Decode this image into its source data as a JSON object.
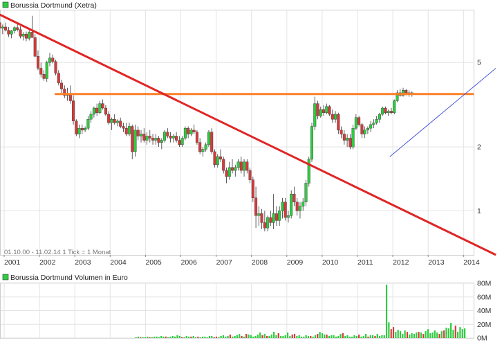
{
  "colors": {
    "up": "#2ecc40",
    "down": "#d63a3a",
    "candle_border": "#333333",
    "grid": "#e3e3e3",
    "frame": "#cccccc",
    "support_line": "#ff7f27",
    "downtrend_line": "#e02525",
    "uptrend_line": "#4a5ad8",
    "volume_bar": "#2ecc40",
    "volume_bar_alt": "#d63a3a",
    "legend_square": "#2ecc40"
  },
  "chart_data": [
    {
      "type": "candlestick",
      "title": "Borussia Dortmund (Xetra)",
      "note": "01.10.00 - 11.02.14   1 Tick = 1 Monat",
      "scale": "log",
      "ylim": [
        0.62,
        8.8
      ],
      "x_ticks": [
        "2001",
        "2002",
        "2003",
        "2004",
        "2005",
        "2006",
        "2007",
        "2008",
        "2009",
        "2010",
        "2011",
        "2012",
        "2013",
        "2014"
      ],
      "y_ticks": [
        {
          "label": "5",
          "value": 5
        },
        {
          "label": "2",
          "value": 2
        },
        {
          "label": "1",
          "value": 1
        }
      ],
      "ohlc_monthly": [
        [
          8.0,
          8.45,
          7.55,
          7.7
        ],
        [
          7.7,
          7.9,
          7.05,
          7.25
        ],
        [
          7.25,
          7.55,
          6.8,
          7.35
        ],
        [
          7.35,
          7.7,
          7.0,
          7.1
        ],
        [
          7.1,
          7.35,
          6.6,
          6.8
        ],
        [
          6.8,
          7.1,
          6.5,
          7.05
        ],
        [
          7.05,
          7.4,
          6.85,
          7.3
        ],
        [
          7.3,
          7.6,
          7.0,
          7.15
        ],
        [
          7.15,
          7.4,
          6.5,
          6.65
        ],
        [
          6.65,
          6.95,
          6.35,
          6.8
        ],
        [
          6.8,
          7.0,
          6.3,
          6.5
        ],
        [
          6.5,
          7.1,
          6.35,
          6.95
        ],
        [
          6.95,
          8.3,
          6.75,
          6.55
        ],
        [
          6.55,
          6.8,
          5.3,
          5.35
        ],
        [
          5.35,
          5.7,
          4.6,
          4.7
        ],
        [
          4.7,
          5.0,
          4.25,
          4.4
        ],
        [
          4.4,
          4.6,
          4.1,
          4.2
        ],
        [
          4.2,
          5.1,
          4.05,
          5.0
        ],
        [
          5.0,
          5.55,
          4.8,
          5.25
        ],
        [
          5.25,
          5.45,
          4.95,
          5.05
        ],
        [
          5.05,
          5.15,
          4.35,
          4.45
        ],
        [
          4.45,
          4.6,
          3.9,
          4.0
        ],
        [
          4.0,
          4.15,
          3.6,
          3.75
        ],
        [
          3.75,
          3.9,
          3.4,
          3.5
        ],
        [
          3.5,
          3.8,
          3.3,
          3.55
        ],
        [
          3.55,
          3.9,
          3.2,
          3.3
        ],
        [
          3.3,
          3.5,
          2.55,
          2.65
        ],
        [
          2.65,
          2.7,
          2.25,
          2.3
        ],
        [
          2.3,
          2.55,
          2.2,
          2.45
        ],
        [
          2.45,
          2.55,
          2.3,
          2.4
        ],
        [
          2.4,
          2.5,
          2.35,
          2.45
        ],
        [
          2.45,
          2.8,
          2.4,
          2.7
        ],
        [
          2.7,
          2.95,
          2.6,
          2.85
        ],
        [
          2.85,
          3.1,
          2.75,
          3.05
        ],
        [
          3.05,
          3.2,
          2.8,
          2.9
        ],
        [
          2.9,
          3.3,
          2.85,
          3.2
        ],
        [
          3.2,
          3.35,
          3.0,
          3.05
        ],
        [
          3.05,
          3.15,
          2.8,
          2.85
        ],
        [
          2.85,
          2.95,
          2.55,
          2.6
        ],
        [
          2.6,
          2.75,
          2.4,
          2.7
        ],
        [
          2.7,
          2.85,
          2.55,
          2.6
        ],
        [
          2.6,
          2.7,
          2.5,
          2.65
        ],
        [
          2.65,
          2.75,
          2.45,
          2.5
        ],
        [
          2.5,
          2.6,
          2.35,
          2.45
        ],
        [
          2.45,
          2.6,
          2.25,
          2.3
        ],
        [
          2.3,
          2.6,
          2.25,
          2.5
        ],
        [
          2.5,
          2.55,
          1.75,
          1.9
        ],
        [
          1.9,
          2.55,
          1.8,
          2.4
        ],
        [
          2.4,
          2.5,
          2.15,
          2.25
        ],
        [
          2.25,
          2.4,
          2.1,
          2.3
        ],
        [
          2.3,
          2.45,
          2.1,
          2.15
        ],
        [
          2.15,
          2.35,
          2.05,
          2.25
        ],
        [
          2.25,
          2.4,
          2.1,
          2.2
        ],
        [
          2.2,
          2.3,
          2.05,
          2.15
        ],
        [
          2.15,
          2.3,
          2.05,
          2.2
        ],
        [
          2.2,
          2.25,
          2.0,
          2.1
        ],
        [
          2.1,
          2.2,
          1.95,
          2.15
        ],
        [
          2.15,
          2.4,
          2.1,
          2.35
        ],
        [
          2.35,
          2.45,
          2.2,
          2.25
        ],
        [
          2.25,
          2.35,
          2.1,
          2.2
        ],
        [
          2.2,
          2.3,
          2.1,
          2.25
        ],
        [
          2.25,
          2.35,
          2.1,
          2.15
        ],
        [
          2.15,
          2.25,
          2.0,
          2.05
        ],
        [
          2.05,
          2.25,
          2.0,
          2.2
        ],
        [
          2.2,
          2.5,
          2.15,
          2.45
        ],
        [
          2.45,
          2.5,
          2.2,
          2.3
        ],
        [
          2.3,
          2.45,
          2.25,
          2.4
        ],
        [
          2.4,
          2.55,
          2.3,
          2.35
        ],
        [
          2.35,
          2.4,
          2.05,
          2.1
        ],
        [
          2.1,
          2.2,
          1.85,
          1.9
        ],
        [
          1.9,
          2.0,
          1.8,
          1.95
        ],
        [
          1.95,
          2.1,
          1.9,
          2.05
        ],
        [
          2.05,
          2.4,
          2.0,
          2.35
        ],
        [
          2.35,
          2.45,
          1.85,
          1.9
        ],
        [
          1.9,
          1.95,
          1.6,
          1.65
        ],
        [
          1.65,
          1.85,
          1.6,
          1.8
        ],
        [
          1.8,
          1.95,
          1.7,
          1.75
        ],
        [
          1.75,
          1.8,
          1.5,
          1.55
        ],
        [
          1.55,
          1.6,
          1.35,
          1.45
        ],
        [
          1.45,
          1.7,
          1.4,
          1.6
        ],
        [
          1.6,
          1.75,
          1.5,
          1.55
        ],
        [
          1.55,
          1.65,
          1.45,
          1.6
        ],
        [
          1.6,
          1.75,
          1.55,
          1.7
        ],
        [
          1.7,
          1.8,
          1.5,
          1.55
        ],
        [
          1.55,
          1.75,
          1.45,
          1.7
        ],
        [
          1.7,
          1.75,
          1.5,
          1.55
        ],
        [
          1.55,
          1.6,
          1.35,
          1.4
        ],
        [
          1.4,
          1.45,
          1.1,
          1.15
        ],
        [
          1.15,
          1.3,
          0.83,
          0.95
        ],
        [
          0.95,
          1.05,
          0.85,
          0.97
        ],
        [
          0.97,
          1.02,
          0.82,
          0.88
        ],
        [
          0.88,
          1.0,
          0.8,
          0.83
        ],
        [
          0.83,
          0.95,
          0.8,
          0.93
        ],
        [
          0.93,
          1.0,
          0.85,
          0.88
        ],
        [
          0.88,
          1.2,
          0.82,
          0.97
        ],
        [
          0.97,
          1.05,
          0.85,
          0.9
        ],
        [
          0.9,
          1.05,
          0.85,
          1.0
        ],
        [
          1.0,
          1.15,
          0.92,
          1.1
        ],
        [
          1.1,
          1.15,
          0.9,
          0.93
        ],
        [
          0.93,
          1.0,
          0.88,
          0.95
        ],
        [
          0.95,
          1.25,
          0.92,
          1.2
        ],
        [
          1.2,
          1.3,
          1.05,
          1.1
        ],
        [
          1.1,
          1.15,
          0.95,
          1.0
        ],
        [
          1.0,
          1.1,
          0.92,
          1.05
        ],
        [
          1.05,
          1.15,
          1.0,
          1.1
        ],
        [
          1.1,
          1.4,
          1.05,
          1.35
        ],
        [
          1.35,
          1.8,
          1.3,
          1.75
        ],
        [
          1.75,
          2.6,
          1.7,
          2.5
        ],
        [
          2.5,
          3.45,
          2.4,
          3.2
        ],
        [
          3.2,
          3.3,
          2.7,
          2.8
        ],
        [
          2.8,
          3.1,
          2.75,
          3.0
        ],
        [
          3.0,
          3.15,
          2.8,
          2.9
        ],
        [
          2.9,
          3.2,
          2.85,
          3.1
        ],
        [
          3.1,
          3.15,
          2.8,
          2.85
        ],
        [
          2.85,
          3.0,
          2.6,
          2.7
        ],
        [
          2.7,
          2.95,
          2.6,
          2.85
        ],
        [
          2.85,
          2.9,
          2.3,
          2.4
        ],
        [
          2.4,
          2.5,
          2.2,
          2.3
        ],
        [
          2.3,
          2.4,
          2.05,
          2.15
        ],
        [
          2.15,
          2.3,
          2.0,
          2.2
        ],
        [
          2.2,
          2.3,
          1.95,
          2.0
        ],
        [
          2.0,
          2.55,
          1.95,
          2.45
        ],
        [
          2.45,
          2.85,
          2.4,
          2.75
        ],
        [
          2.75,
          2.8,
          2.5,
          2.55
        ],
        [
          2.55,
          2.6,
          2.2,
          2.3
        ],
        [
          2.3,
          2.5,
          2.2,
          2.4
        ],
        [
          2.4,
          2.5,
          2.3,
          2.45
        ],
        [
          2.45,
          2.65,
          2.35,
          2.55
        ],
        [
          2.55,
          2.7,
          2.45,
          2.6
        ],
        [
          2.6,
          2.8,
          2.55,
          2.7
        ],
        [
          2.7,
          2.9,
          2.6,
          2.85
        ],
        [
          2.85,
          3.1,
          2.8,
          3.05
        ],
        [
          3.05,
          3.1,
          2.85,
          2.9
        ],
        [
          2.9,
          3.0,
          2.8,
          2.95
        ],
        [
          2.95,
          3.05,
          2.85,
          2.9
        ],
        [
          2.9,
          3.35,
          2.85,
          3.3
        ],
        [
          3.3,
          3.7,
          3.25,
          3.6
        ],
        [
          3.6,
          3.75,
          3.45,
          3.5
        ],
        [
          3.5,
          3.8,
          3.45,
          3.7
        ],
        [
          3.7,
          3.75,
          3.5,
          3.6
        ],
        [
          3.6,
          3.7,
          3.45,
          3.55
        ],
        [
          3.55,
          3.65,
          3.45,
          3.6
        ]
      ],
      "overlays": [
        {
          "kind": "horizontal",
          "value": 3.55,
          "from": "2002",
          "to": "2014",
          "color": "support_line"
        },
        {
          "kind": "trend",
          "from": [
            "2000-10",
            8.6
          ],
          "to": [
            "2014-12",
            0.62
          ],
          "color": "downtrend_line"
        },
        {
          "kind": "trend",
          "from": [
            "2011-12",
            1.8
          ],
          "to": [
            "2014-12",
            4.7
          ],
          "color": "uptrend_line"
        }
      ]
    },
    {
      "type": "bar",
      "title": "Borussia Dortmund Volumen in Euro",
      "ylim": [
        0,
        80
      ],
      "y_ticks": [
        "80M",
        "60M",
        "40M",
        "20M",
        "0M"
      ],
      "values_monthly_millions": [
        0,
        0,
        0,
        0,
        0,
        0,
        0,
        0,
        0,
        0,
        0,
        0,
        0,
        0,
        0,
        0,
        0,
        0,
        0,
        0,
        0,
        0,
        0,
        0,
        0,
        0,
        0,
        0,
        0,
        0,
        0,
        0,
        0,
        0,
        0,
        0,
        0,
        0,
        0,
        0,
        0,
        0,
        0,
        0,
        0,
        0,
        0,
        0,
        0,
        0,
        0,
        0,
        0,
        0,
        0,
        0,
        0,
        0,
        0,
        0,
        0,
        0,
        0,
        0,
        0,
        0,
        0,
        0,
        0,
        0,
        0,
        0,
        0,
        0,
        0,
        0,
        0,
        0,
        0,
        0,
        0,
        0,
        0,
        0,
        0,
        0,
        0,
        0,
        0,
        0,
        0,
        0,
        0,
        0,
        0,
        0,
        0,
        0,
        0,
        0,
        0,
        0,
        1,
        2,
        1,
        1,
        1,
        2,
        1,
        1,
        2,
        2,
        1,
        3,
        2,
        2,
        1,
        2,
        3,
        2,
        4,
        3,
        1,
        1,
        3,
        2,
        2,
        3,
        1,
        2,
        1,
        2,
        2,
        1,
        3,
        3,
        1,
        2,
        1,
        3,
        4,
        2,
        3,
        5,
        2,
        3,
        4,
        6,
        3,
        2,
        6,
        5,
        4,
        2,
        3,
        5,
        8,
        4,
        6,
        3,
        3,
        5,
        9,
        4,
        7,
        3,
        3,
        4,
        8,
        3,
        5,
        6,
        3,
        4,
        2,
        2,
        4,
        3,
        3,
        2,
        4,
        6,
        9,
        7,
        5,
        5,
        3,
        4,
        4,
        2,
        3,
        6,
        7,
        3,
        4,
        2,
        2,
        4,
        3,
        5,
        2,
        3,
        6,
        2,
        4,
        4,
        3,
        6,
        3,
        4,
        4,
        78,
        23,
        13,
        16,
        9,
        12,
        10,
        6,
        11,
        9,
        5,
        7,
        6,
        8,
        9,
        8,
        6,
        10,
        13,
        7,
        8,
        11,
        8,
        6,
        10,
        11,
        15,
        14,
        22,
        12,
        18,
        9,
        16,
        13,
        14
      ]
    }
  ]
}
